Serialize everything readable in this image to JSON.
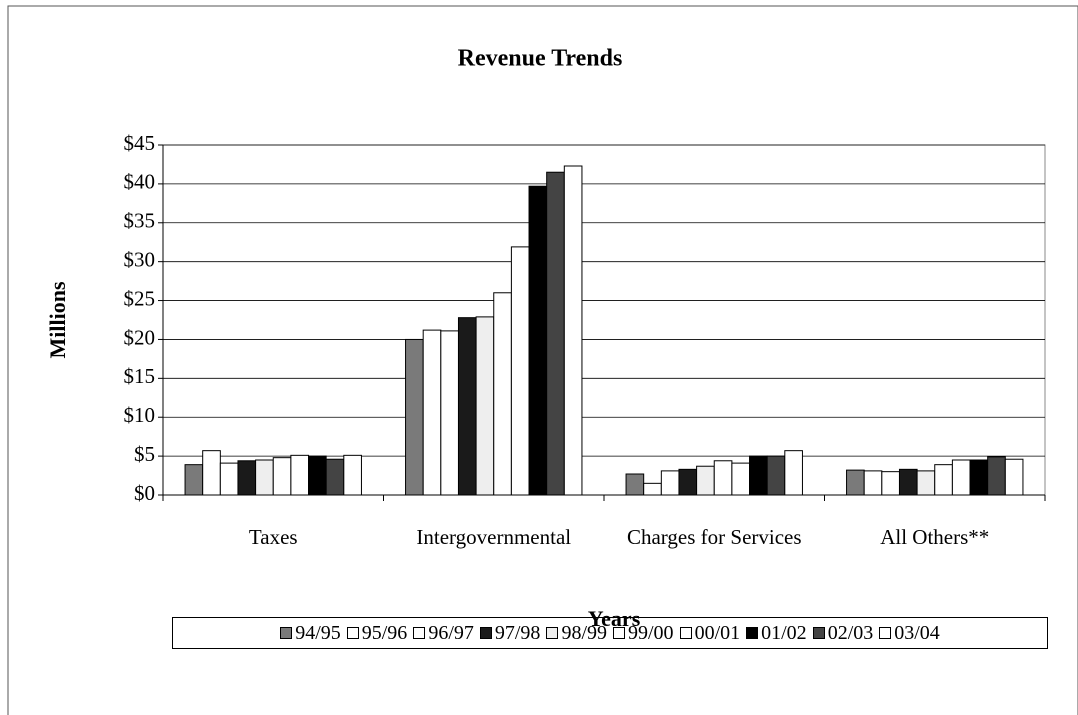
{
  "chart_data": {
    "type": "bar",
    "title": "Revenue Trends",
    "y_label": "Millions",
    "x_label": "Years",
    "categories": [
      "Taxes",
      "Intergovernmental",
      "Charges for Services",
      "All Others**"
    ],
    "ylim": [
      0,
      45
    ],
    "yticks": [
      {
        "value": 0,
        "label": "$0"
      },
      {
        "value": 5,
        "label": "$5"
      },
      {
        "value": 10,
        "label": "$10"
      },
      {
        "value": 15,
        "label": "$15"
      },
      {
        "value": 20,
        "label": "$20"
      },
      {
        "value": 25,
        "label": "$25"
      },
      {
        "value": 30,
        "label": "$30"
      },
      {
        "value": 35,
        "label": "$35"
      },
      {
        "value": 40,
        "label": "$40"
      },
      {
        "value": 45,
        "label": "$45"
      }
    ],
    "grid": true,
    "legend": "bottom",
    "series": [
      {
        "name": "94/95",
        "color": "#7a7a7a",
        "values": [
          3.9,
          20.0,
          2.7,
          3.2
        ]
      },
      {
        "name": "95/96",
        "color": "#ffffff",
        "values": [
          5.7,
          21.2,
          1.5,
          3.1
        ]
      },
      {
        "name": "96/97",
        "color": "#ffffff",
        "values": [
          4.1,
          21.1,
          3.1,
          3.0
        ]
      },
      {
        "name": "97/98",
        "color": "#1a1a1a",
        "values": [
          4.4,
          22.8,
          3.3,
          3.3
        ]
      },
      {
        "name": "98/99",
        "color": "#eeeeee",
        "values": [
          4.5,
          22.9,
          3.7,
          3.1
        ]
      },
      {
        "name": "99/00",
        "color": "#ffffff",
        "values": [
          4.8,
          26.0,
          4.4,
          3.9
        ]
      },
      {
        "name": "00/01",
        "color": "#ffffff",
        "values": [
          5.1,
          31.9,
          4.1,
          4.5
        ]
      },
      {
        "name": "01/02",
        "color": "#000000",
        "values": [
          5.0,
          39.7,
          5.0,
          4.5
        ]
      },
      {
        "name": "02/03",
        "color": "#444444",
        "values": [
          4.6,
          41.5,
          5.0,
          4.9
        ]
      },
      {
        "name": "03/04",
        "color": "#ffffff",
        "values": [
          5.1,
          42.3,
          5.7,
          4.6
        ]
      }
    ]
  }
}
